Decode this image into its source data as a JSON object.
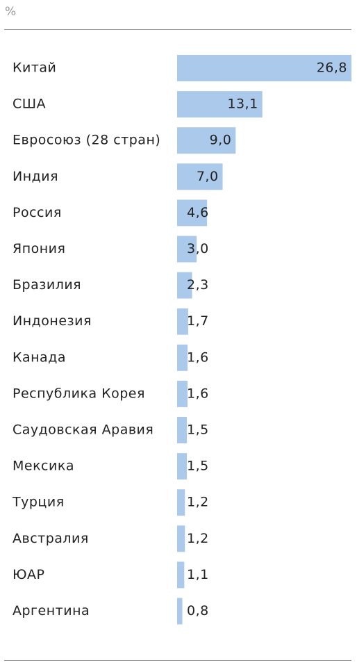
{
  "chart_data": {
    "type": "barh",
    "unit": "%",
    "color": "#abcaeb",
    "categories": [
      "Китай",
      "США",
      "Евросоюз (28 стран)",
      "Индия",
      "Россия",
      "Япония",
      "Бразилия",
      "Индонезия",
      "Канада",
      "Республика Корея",
      "Саудовская Аравия",
      "Мексика",
      "Турция",
      "Австралия",
      "ЮАР",
      "Аргентина"
    ],
    "values": [
      26.8,
      13.1,
      9.0,
      7.0,
      4.6,
      3.0,
      2.3,
      1.7,
      1.6,
      1.6,
      1.5,
      1.5,
      1.2,
      1.2,
      1.1,
      0.8
    ],
    "value_labels": [
      "26,8",
      "13,1",
      "9,0",
      "7,0",
      "4,6",
      "3,0",
      "2,3",
      "1,7",
      "1,6",
      "1,6",
      "1,5",
      "1,5",
      "1,2",
      "1,2",
      "1,1",
      "0,8"
    ]
  }
}
